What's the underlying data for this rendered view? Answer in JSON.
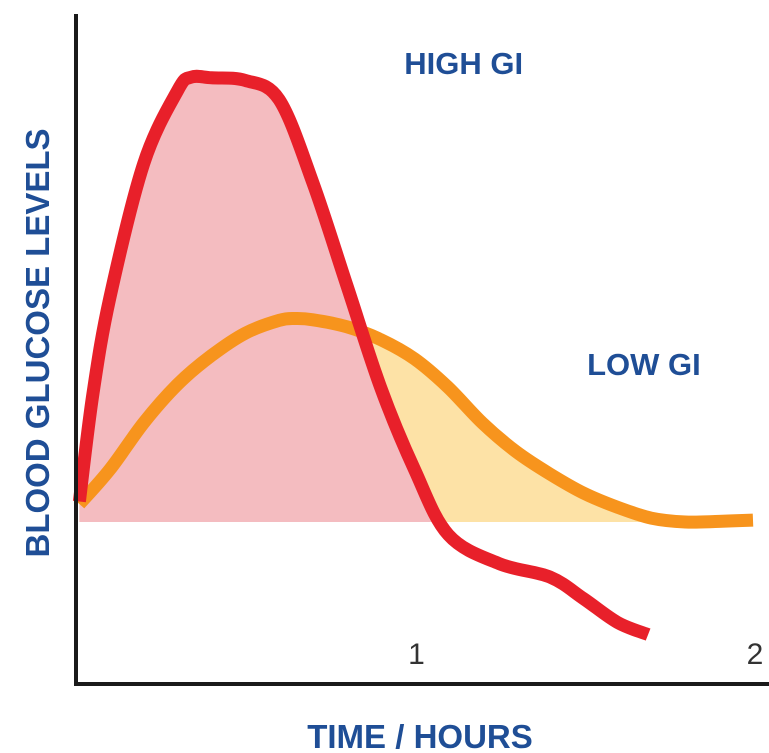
{
  "chart_data": {
    "type": "area",
    "xlabel": "TIME / HOURS",
    "ylabel": "BLOOD GLUCOSE LEVELS",
    "xlim": [
      0,
      2.05
    ],
    "ylim": [
      0,
      100
    ],
    "x_ticks": [
      {
        "value": 1,
        "label": "1"
      },
      {
        "value": 2,
        "label": "2"
      }
    ],
    "axis_color": "#1a1a1a",
    "label_color": "#1f4e96",
    "series": [
      {
        "name": "HIGH GI",
        "line_color": "#e8202a",
        "fill_color": "#f4bcc0",
        "x": [
          0.01,
          0.05,
          0.1,
          0.2,
          0.3,
          0.34,
          0.4,
          0.5,
          0.6,
          0.7,
          0.8,
          0.9,
          1.0,
          1.1,
          1.25,
          1.4,
          1.5,
          1.6,
          1.69
        ],
        "y": [
          23.2,
          40.0,
          55.0,
          76.0,
          87.4,
          89.5,
          89.4,
          89.0,
          86.0,
          73.0,
          57.0,
          41.0,
          28.2,
          18.0,
          13.5,
          11.4,
          8.0,
          4.3,
          2.4
        ]
      },
      {
        "name": "LOW GI",
        "line_color": "#f7941d",
        "fill_color": "#fde2a6",
        "x": [
          0.01,
          0.1,
          0.2,
          0.3,
          0.4,
          0.5,
          0.6,
          0.65,
          0.7,
          0.8,
          0.9,
          1.0,
          1.1,
          1.2,
          1.3,
          1.4,
          1.5,
          1.6,
          1.7,
          1.8,
          1.9,
          2.0
        ],
        "y": [
          22.8,
          28.2,
          35.5,
          41.5,
          46.0,
          49.5,
          51.5,
          51.8,
          51.6,
          50.5,
          48.5,
          45.5,
          41.0,
          35.5,
          31.0,
          27.5,
          24.5,
          22.3,
          20.6,
          20.0,
          20.1,
          20.3
        ]
      }
    ],
    "annotations": [
      {
        "text": "HIGH GI",
        "series": "HIGH GI"
      },
      {
        "text": "LOW GI",
        "series": "LOW GI"
      }
    ]
  }
}
